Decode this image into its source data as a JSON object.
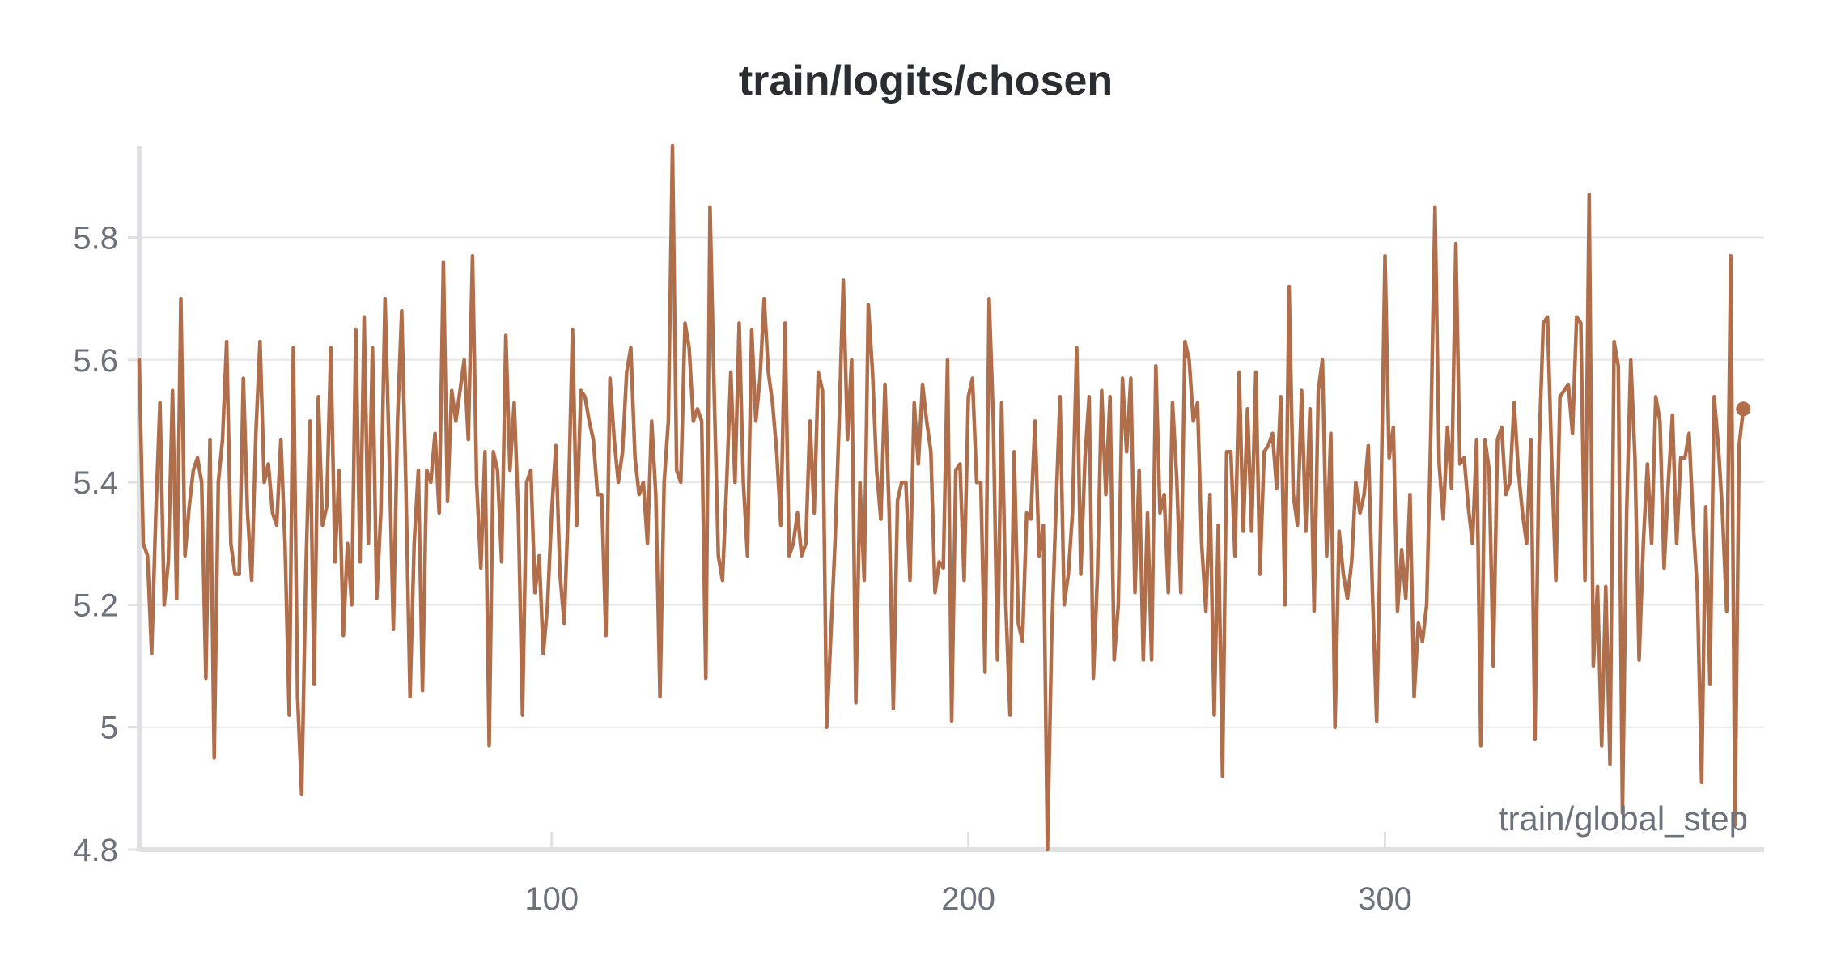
{
  "chart_data": {
    "type": "line",
    "title": "train/logits/chosen",
    "xlabel": "train/global_step",
    "ylabel": "",
    "xlim": [
      1,
      391
    ],
    "ylim": [
      4.8,
      5.95
    ],
    "x_ticks": [
      100,
      200,
      300
    ],
    "x_tick_labels": [
      "100",
      "200",
      "300"
    ],
    "y_ticks": [
      4.8,
      5.0,
      5.2,
      5.4,
      5.6,
      5.8
    ],
    "y_tick_labels": [
      "4.8",
      "5",
      "5.2",
      "5.4",
      "5.6",
      "5.8"
    ],
    "grid": true,
    "legend": "none",
    "series": [
      {
        "color": "#b06e4b",
        "x_start": 1,
        "x_step": 1,
        "values": [
          5.6,
          5.3,
          5.28,
          5.12,
          5.35,
          5.53,
          5.2,
          5.27,
          5.55,
          5.21,
          5.7,
          5.28,
          5.36,
          5.42,
          5.44,
          5.4,
          5.08,
          5.47,
          4.95,
          5.4,
          5.47,
          5.63,
          5.3,
          5.25,
          5.25,
          5.57,
          5.35,
          5.24,
          5.48,
          5.63,
          5.4,
          5.43,
          5.35,
          5.33,
          5.47,
          5.3,
          5.02,
          5.62,
          5.05,
          4.89,
          5.25,
          5.5,
          5.07,
          5.54,
          5.33,
          5.36,
          5.62,
          5.27,
          5.42,
          5.15,
          5.3,
          5.2,
          5.65,
          5.27,
          5.67,
          5.3,
          5.62,
          5.21,
          5.35,
          5.7,
          5.45,
          5.16,
          5.5,
          5.68,
          5.4,
          5.05,
          5.3,
          5.42,
          5.06,
          5.42,
          5.4,
          5.48,
          5.35,
          5.76,
          5.37,
          5.55,
          5.5,
          5.55,
          5.6,
          5.47,
          5.77,
          5.4,
          5.26,
          5.45,
          4.97,
          5.45,
          5.42,
          5.27,
          5.64,
          5.42,
          5.53,
          5.35,
          5.02,
          5.4,
          5.42,
          5.22,
          5.28,
          5.12,
          5.2,
          5.35,
          5.46,
          5.25,
          5.17,
          5.36,
          5.65,
          5.33,
          5.55,
          5.54,
          5.5,
          5.47,
          5.38,
          5.38,
          5.15,
          5.57,
          5.47,
          5.4,
          5.45,
          5.58,
          5.62,
          5.44,
          5.38,
          5.4,
          5.3,
          5.5,
          5.38,
          5.05,
          5.4,
          5.5,
          5.95,
          5.42,
          5.4,
          5.66,
          5.62,
          5.5,
          5.52,
          5.5,
          5.08,
          5.85,
          5.55,
          5.28,
          5.24,
          5.4,
          5.58,
          5.4,
          5.66,
          5.4,
          5.28,
          5.65,
          5.5,
          5.57,
          5.7,
          5.58,
          5.53,
          5.45,
          5.33,
          5.66,
          5.28,
          5.3,
          5.35,
          5.28,
          5.3,
          5.5,
          5.35,
          5.58,
          5.55,
          5.0,
          5.15,
          5.3,
          5.5,
          5.73,
          5.47,
          5.6,
          5.04,
          5.4,
          5.24,
          5.69,
          5.58,
          5.42,
          5.34,
          5.56,
          5.35,
          5.03,
          5.37,
          5.4,
          5.4,
          5.24,
          5.53,
          5.43,
          5.56,
          5.5,
          5.45,
          5.22,
          5.27,
          5.26,
          5.6,
          5.01,
          5.42,
          5.43,
          5.24,
          5.54,
          5.57,
          5.4,
          5.4,
          5.09,
          5.7,
          5.5,
          5.11,
          5.53,
          5.2,
          5.02,
          5.45,
          5.17,
          5.14,
          5.35,
          5.34,
          5.5,
          5.28,
          5.33,
          4.8,
          5.15,
          5.35,
          5.54,
          5.2,
          5.25,
          5.35,
          5.62,
          5.25,
          5.44,
          5.54,
          5.08,
          5.25,
          5.55,
          5.38,
          5.54,
          5.11,
          5.2,
          5.57,
          5.45,
          5.57,
          5.22,
          5.42,
          5.11,
          5.35,
          5.11,
          5.59,
          5.35,
          5.38,
          5.22,
          5.53,
          5.41,
          5.22,
          5.63,
          5.6,
          5.5,
          5.53,
          5.3,
          5.19,
          5.38,
          5.02,
          5.33,
          4.92,
          5.45,
          5.45,
          5.28,
          5.58,
          5.32,
          5.52,
          5.32,
          5.58,
          5.25,
          5.45,
          5.46,
          5.48,
          5.39,
          5.54,
          5.2,
          5.72,
          5.38,
          5.33,
          5.55,
          5.32,
          5.52,
          5.19,
          5.55,
          5.6,
          5.28,
          5.48,
          5.0,
          5.32,
          5.25,
          5.21,
          5.27,
          5.4,
          5.35,
          5.38,
          5.46,
          5.22,
          5.01,
          5.35,
          5.77,
          5.44,
          5.49,
          5.19,
          5.29,
          5.21,
          5.38,
          5.05,
          5.17,
          5.14,
          5.2,
          5.48,
          5.85,
          5.43,
          5.34,
          5.49,
          5.39,
          5.79,
          5.43,
          5.44,
          5.36,
          5.3,
          5.47,
          4.97,
          5.47,
          5.42,
          5.1,
          5.47,
          5.49,
          5.38,
          5.4,
          5.53,
          5.42,
          5.35,
          5.3,
          5.47,
          4.98,
          5.46,
          5.66,
          5.67,
          5.44,
          5.24,
          5.54,
          5.55,
          5.56,
          5.48,
          5.67,
          5.66,
          5.24,
          5.87,
          5.1,
          5.23,
          4.97,
          5.23,
          4.94,
          5.63,
          5.59,
          4.86,
          5.35,
          5.6,
          5.44,
          5.11,
          5.3,
          5.43,
          5.3,
          5.54,
          5.5,
          5.26,
          5.4,
          5.51,
          5.3,
          5.44,
          5.44,
          5.48,
          5.33,
          5.22,
          4.91,
          5.36,
          5.07,
          5.54,
          5.46,
          5.35,
          5.19,
          5.77,
          4.84,
          5.46,
          5.52
        ]
      }
    ]
  }
}
